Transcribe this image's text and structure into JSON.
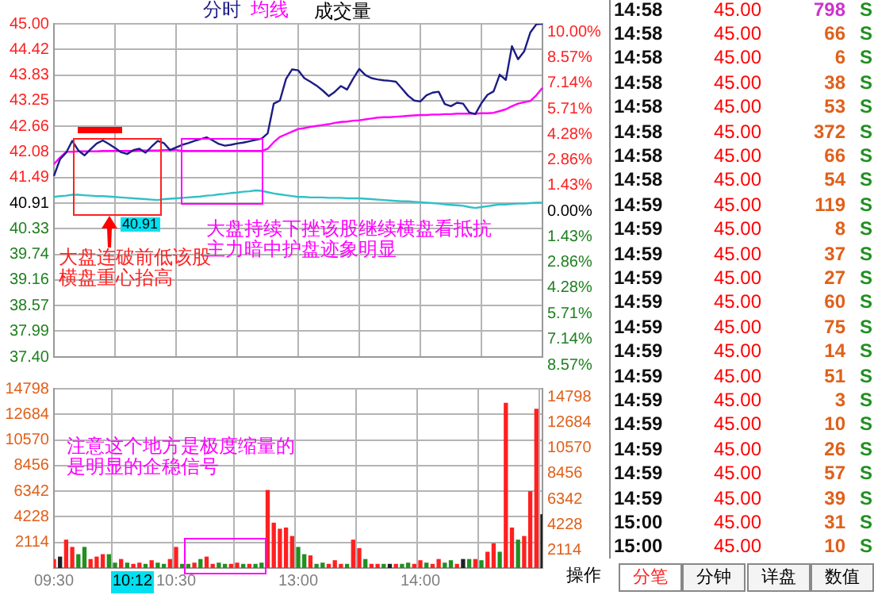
{
  "chart_data": [
    {
      "type": "line",
      "legend": "top",
      "grid": true,
      "tick_labels": "y",
      "categories": [
        null,
        null,
        null,
        null,
        null,
        null,
        null,
        null,
        null,
        null,
        null,
        null,
        null,
        null,
        null,
        null,
        null,
        null,
        null,
        null,
        null,
        null,
        null,
        null,
        null,
        null,
        null,
        null,
        null,
        null,
        null,
        null,
        null,
        null,
        null,
        null,
        null,
        null,
        null,
        null,
        null,
        null,
        null,
        null,
        null,
        null,
        null,
        null,
        null,
        null,
        null,
        null,
        null,
        null,
        null,
        null,
        null,
        null,
        null,
        null,
        null,
        null,
        null,
        null,
        null,
        null,
        null,
        null,
        null,
        null,
        null,
        null,
        null,
        null,
        null,
        null,
        null,
        null,
        null,
        null,
        null
      ],
      "ylim": [
        37.4,
        45.0
      ],
      "yticks": [
        {
          "value": 45,
          "label": "45.00"
        },
        44.42,
        43.83,
        43.25,
        42.66,
        42.08,
        41.49,
        40.91,
        40.33,
        39.74,
        39.16,
        38.57,
        37.99,
        {
          "value": 37.4,
          "label": "37.40"
        }
      ],
      "y2lim": [
        -8.57,
        10.0
      ],
      "y2ticks": [
        {
          "value": 10,
          "label": "10.00%"
        },
        {
          "value": 8.57,
          "label": "8.57%"
        },
        {
          "value": 7.14,
          "label": "7.14%"
        },
        {
          "value": 5.71,
          "label": "5.71%"
        },
        {
          "value": 4.28,
          "label": "4.28%"
        },
        {
          "value": 2.86,
          "label": "2.86%"
        },
        {
          "value": 1.43,
          "label": "1.43%"
        },
        {
          "value": 0,
          "label": "0.00%"
        },
        {
          "value": -1.43,
          "label": "1.43%"
        },
        {
          "value": -2.86,
          "label": "2.86%"
        },
        {
          "value": -4.28,
          "label": "4.28%"
        },
        {
          "value": -5.71,
          "label": "5.71%"
        },
        {
          "value": -7.14,
          "label": "7.14%"
        },
        {
          "value": -8.57,
          "label": "8.57%"
        }
      ],
      "series": [
        {
          "name": "分时",
          "color": "#1c1c84",
          "values": [
            41.53,
            41.91,
            42.06,
            42.33,
            42.11,
            42.0,
            42.14,
            42.27,
            42.34,
            42.26,
            42.17,
            42.07,
            42.03,
            42.12,
            42.15,
            42.06,
            42.2,
            42.33,
            42.28,
            42.12,
            42.18,
            42.24,
            42.28,
            42.33,
            42.37,
            42.41,
            42.34,
            42.26,
            42.22,
            42.24,
            42.27,
            42.29,
            42.32,
            42.35,
            42.38,
            42.5,
            43.18,
            43.25,
            43.74,
            43.96,
            43.94,
            43.76,
            43.68,
            43.59,
            43.48,
            43.35,
            43.45,
            43.58,
            43.5,
            43.75,
            43.97,
            43.83,
            43.76,
            43.73,
            43.71,
            43.7,
            43.68,
            43.52,
            43.36,
            43.25,
            43.23,
            43.37,
            43.43,
            43.45,
            43.17,
            43.12,
            43.2,
            43.18,
            42.98,
            42.94,
            43.19,
            43.38,
            43.46,
            43.84,
            43.72,
            44.49,
            44.19,
            44.37,
            44.8,
            44.99,
            45.0
          ]
        },
        {
          "name": "均线",
          "color": "#ff00ff",
          "values": [
            41.8,
            41.95,
            42.08,
            42.08,
            42.09,
            42.09,
            42.09,
            42.09,
            42.1,
            42.1,
            42.1,
            42.1,
            42.1,
            42.1,
            42.11,
            42.11,
            42.11,
            42.11,
            42.12,
            42.12,
            42.12,
            42.1,
            42.1,
            42.1,
            42.1,
            42.1,
            42.1,
            42.1,
            42.1,
            42.1,
            42.1,
            42.1,
            42.1,
            42.1,
            42.1,
            42.15,
            42.3,
            42.42,
            42.48,
            42.54,
            42.6,
            42.62,
            42.65,
            42.67,
            42.69,
            42.71,
            42.74,
            42.76,
            42.77,
            42.79,
            42.8,
            42.82,
            42.84,
            42.86,
            42.87,
            42.87,
            42.88,
            42.89,
            42.9,
            42.91,
            42.92,
            42.92,
            42.93,
            42.93,
            42.94,
            42.94,
            42.95,
            42.95,
            42.95,
            42.95,
            42.96,
            42.96,
            42.97,
            43.01,
            43.05,
            43.12,
            43.18,
            43.21,
            43.24,
            43.37,
            43.54
          ]
        },
        {
          "color": "#30c0c8",
          "values": [
            41.05,
            41.07,
            41.08,
            41.1,
            41.1,
            41.09,
            41.08,
            41.07,
            41.07,
            41.06,
            41.05,
            41.04,
            41.03,
            41.02,
            41.01,
            41.0,
            40.99,
            40.98,
            41.0,
            41.01,
            41.02,
            41.03,
            41.04,
            41.05,
            41.06,
            41.08,
            41.09,
            41.11,
            41.12,
            41.14,
            41.15,
            41.17,
            41.18,
            41.2,
            41.19,
            41.16,
            41.13,
            41.11,
            41.09,
            41.07,
            41.05,
            41.05,
            41.04,
            41.04,
            41.04,
            41.03,
            41.03,
            41.03,
            41.02,
            41.02,
            41.02,
            41.01,
            41.0,
            40.99,
            40.98,
            40.97,
            40.96,
            40.95,
            40.95,
            40.94,
            40.93,
            40.92,
            40.91,
            40.9,
            40.88,
            40.87,
            40.86,
            40.85,
            40.82,
            40.8,
            40.82,
            40.84,
            40.86,
            40.88,
            40.88,
            40.89,
            40.9,
            40.9,
            40.91,
            40.92,
            40.92
          ]
        }
      ],
      "annotations": [
        "大盘连破前低该股",
        "横盘重心抬高",
        "大盘持续下挫该股继续横盘看抵抗",
        "主力暗中护盘迹象明显",
        "40.91"
      ]
    },
    {
      "type": "bar",
      "legend": "top",
      "grid": true,
      "categories": [
        "09:30",
        null,
        null,
        null,
        null,
        null,
        null,
        null,
        null,
        null,
        null,
        null,
        null,
        null,
        null,
        null,
        null,
        null,
        null,
        null,
        "10:30",
        null,
        null,
        null,
        null,
        null,
        null,
        null,
        null,
        null,
        null,
        null,
        null,
        null,
        null,
        null,
        null,
        null,
        null,
        null,
        "13:00",
        null,
        null,
        null,
        null,
        null,
        null,
        null,
        null,
        null,
        null,
        null,
        null,
        null,
        null,
        null,
        null,
        null,
        null,
        null,
        "14:00",
        null,
        null,
        null,
        null,
        null,
        null,
        null,
        null,
        null,
        null,
        null,
        null,
        null,
        null,
        null,
        null,
        null,
        null,
        null,
        null
      ],
      "ylim": [
        0,
        14798
      ],
      "yticks": [
        2114,
        4228,
        6342,
        8456,
        10570,
        12684,
        14798
      ],
      "y2lim": [
        0,
        14798
      ],
      "y2ticks": [
        2114,
        4228,
        6342,
        8456,
        10570,
        12684,
        14798
      ],
      "series": [
        {
          "name": "成交量",
          "values": [
            700,
            900,
            2300,
            1700,
            1100,
            1700,
            700,
            900,
            1100,
            1100,
            400,
            700,
            400,
            300,
            400,
            300,
            600,
            400,
            300,
            700,
            1700,
            300,
            300,
            400,
            700,
            900,
            300,
            400,
            300,
            300,
            400,
            300,
            300,
            300,
            400,
            6400,
            3700,
            3200,
            3300,
            2600,
            1700,
            1100,
            1000,
            300,
            400,
            300,
            600,
            300,
            300,
            2300,
            1600,
            700,
            300,
            300,
            300,
            300,
            300,
            300,
            400,
            300,
            600,
            400,
            300,
            700,
            400,
            600,
            300,
            700,
            700,
            700,
            600,
            1300,
            2000,
            1300,
            13600,
            3300,
            2300,
            2600,
            6300,
            13100,
            4400
          ],
          "colors": [
            "#ff2020",
            "#202020",
            "#ff2020",
            "#ff2020",
            "#209020",
            "#209020",
            "#ff2020",
            "#ff2020",
            "#ff2020",
            "#209020",
            "#209020",
            "#ff2020",
            "#209020",
            "#ff2020",
            "#ff2020",
            "#209020",
            "#ff2020",
            "#209020",
            "#209020",
            "#ff2020",
            "#ff2020",
            "#209020",
            "#209020",
            "#ff2020",
            "#209020",
            "#ff2020",
            "#ff2020",
            "#209020",
            "#209020",
            "#ff2020",
            "#ff2020",
            "#209020",
            "#ff2020",
            "#209020",
            "#209020",
            "#ff2020",
            "#ff2020",
            "#ff2020",
            "#ff2020",
            "#ff2020",
            "#209020",
            "#209020",
            "#ff2020",
            "#209020",
            "#209020",
            "#ff2020",
            "#ff2020",
            "#ff2020",
            "#209020",
            "#ff2020",
            "#ff2020",
            "#209020",
            "#ff2020",
            "#ff2020",
            "#209020",
            "#202020",
            "#ff2020",
            "#209020",
            "#209020",
            "#ff2020",
            "#ff2020",
            "#209020",
            "#ff2020",
            "#ff2020",
            "#209020",
            "#209020",
            "#ff2020",
            "#202020",
            "#209020",
            "#ff2020",
            "#209020",
            "#ff2020",
            "#ff2020",
            "#209020",
            "#ff2020",
            "#ff2020",
            "#209020",
            "#ff2020",
            "#ff2020",
            "#ff2020",
            "#202020"
          ]
        }
      ],
      "annotations": [
        "注意这个地方是极度缩量的",
        "是明显的企稳信号",
        "10:12"
      ]
    },
    {
      "type": "other",
      "data_labels": true,
      "categories": [
        "14:58",
        "14:58",
        "14:58",
        "14:58",
        "14:58",
        "14:58",
        "14:58",
        "14:58",
        "14:59",
        "14:59",
        "14:59",
        "14:59",
        "14:59",
        "14:59",
        "14:59",
        "14:59",
        "14:59",
        "14:59",
        "14:59",
        "14:59",
        "14:59",
        "15:00",
        "15:00"
      ],
      "series": [
        {
          "color": "#ff0000",
          "values": [
            45,
            45,
            45,
            45,
            45,
            45,
            45,
            45,
            45,
            45,
            45,
            45,
            45,
            45,
            45,
            45,
            45,
            45,
            45,
            45,
            45,
            45,
            45
          ],
          "value_labels": [
            "45.00",
            "45.00",
            "45.00",
            "45.00",
            "45.00",
            "45.00",
            "45.00",
            "45.00",
            "45.00",
            "45.00",
            "45.00",
            "45.00",
            "45.00",
            "45.00",
            "45.00",
            "45.00",
            "45.00",
            "45.00",
            "45.00",
            "45.00",
            "45.00",
            "45.00",
            "45.00"
          ]
        },
        {
          "values": [
            798,
            66,
            6,
            38,
            53,
            372,
            66,
            54,
            119,
            8,
            37,
            27,
            60,
            75,
            14,
            51,
            3,
            10,
            26,
            57,
            39,
            31,
            10
          ],
          "colors": [
            "#cc33cc",
            "#e0601a",
            "#e0601a",
            "#e0601a",
            "#e0601a",
            "#e0601a",
            "#e0601a",
            "#e0601a",
            "#e0601a",
            "#e0601a",
            "#e0601a",
            "#e0601a",
            "#e0601a",
            "#e0601a",
            "#e0601a",
            "#e0601a",
            "#e0601a",
            "#e0601a",
            "#e0601a",
            "#e0601a",
            "#e0601a",
            "#e0601a",
            "#e0601a"
          ]
        }
      ],
      "annotations": [
        "S",
        "S",
        "S",
        "S",
        "S",
        "S",
        "S",
        "S",
        "S",
        "S",
        "S",
        "S",
        "S",
        "S",
        "S",
        "S",
        "S",
        "S",
        "S",
        "S",
        "S",
        "S",
        "S",
        "操作",
        "分笔",
        "分钟",
        "详盘",
        "数值"
      ]
    }
  ]
}
